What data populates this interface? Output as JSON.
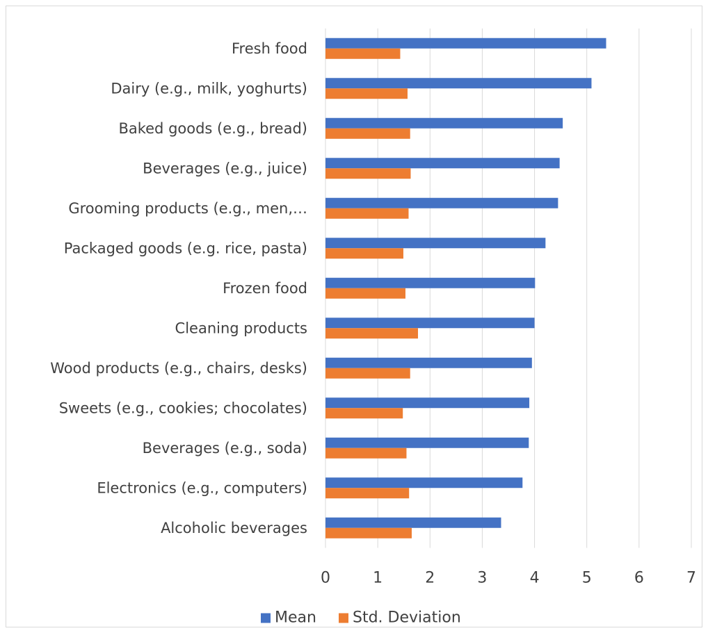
{
  "chart_data": {
    "type": "bar",
    "orientation": "horizontal",
    "categories": [
      "Fresh food",
      "Dairy (e.g., milk, yoghurts)",
      "Baked goods (e.g., bread)",
      "Beverages (e.g., juice)",
      "Grooming products (e.g., men,…",
      "Packaged goods (e.g. rice, pasta)",
      "Frozen food",
      "Cleaning products",
      "Wood products (e.g., chairs, desks)",
      "Sweets (e.g., cookies; chocolates)",
      "Beverages (e.g., soda)",
      "Electronics (e.g., computers)",
      "Alcoholic beverages"
    ],
    "series": [
      {
        "name": "Mean",
        "color": "#4472c4",
        "values": [
          5.37,
          5.09,
          4.54,
          4.48,
          4.45,
          4.21,
          4.01,
          4.0,
          3.95,
          3.9,
          3.89,
          3.77,
          3.36
        ]
      },
      {
        "name": "Std. Deviation",
        "color": "#ed7d31",
        "values": [
          1.43,
          1.57,
          1.62,
          1.63,
          1.59,
          1.49,
          1.53,
          1.77,
          1.62,
          1.48,
          1.55,
          1.6,
          1.65
        ]
      }
    ],
    "xlim": [
      0,
      7
    ],
    "xticks": [
      "0",
      "1",
      "2",
      "3",
      "4",
      "5",
      "6",
      "7"
    ],
    "grid": true,
    "legend": "bottom",
    "title": "",
    "xlabel": "",
    "ylabel": ""
  }
}
